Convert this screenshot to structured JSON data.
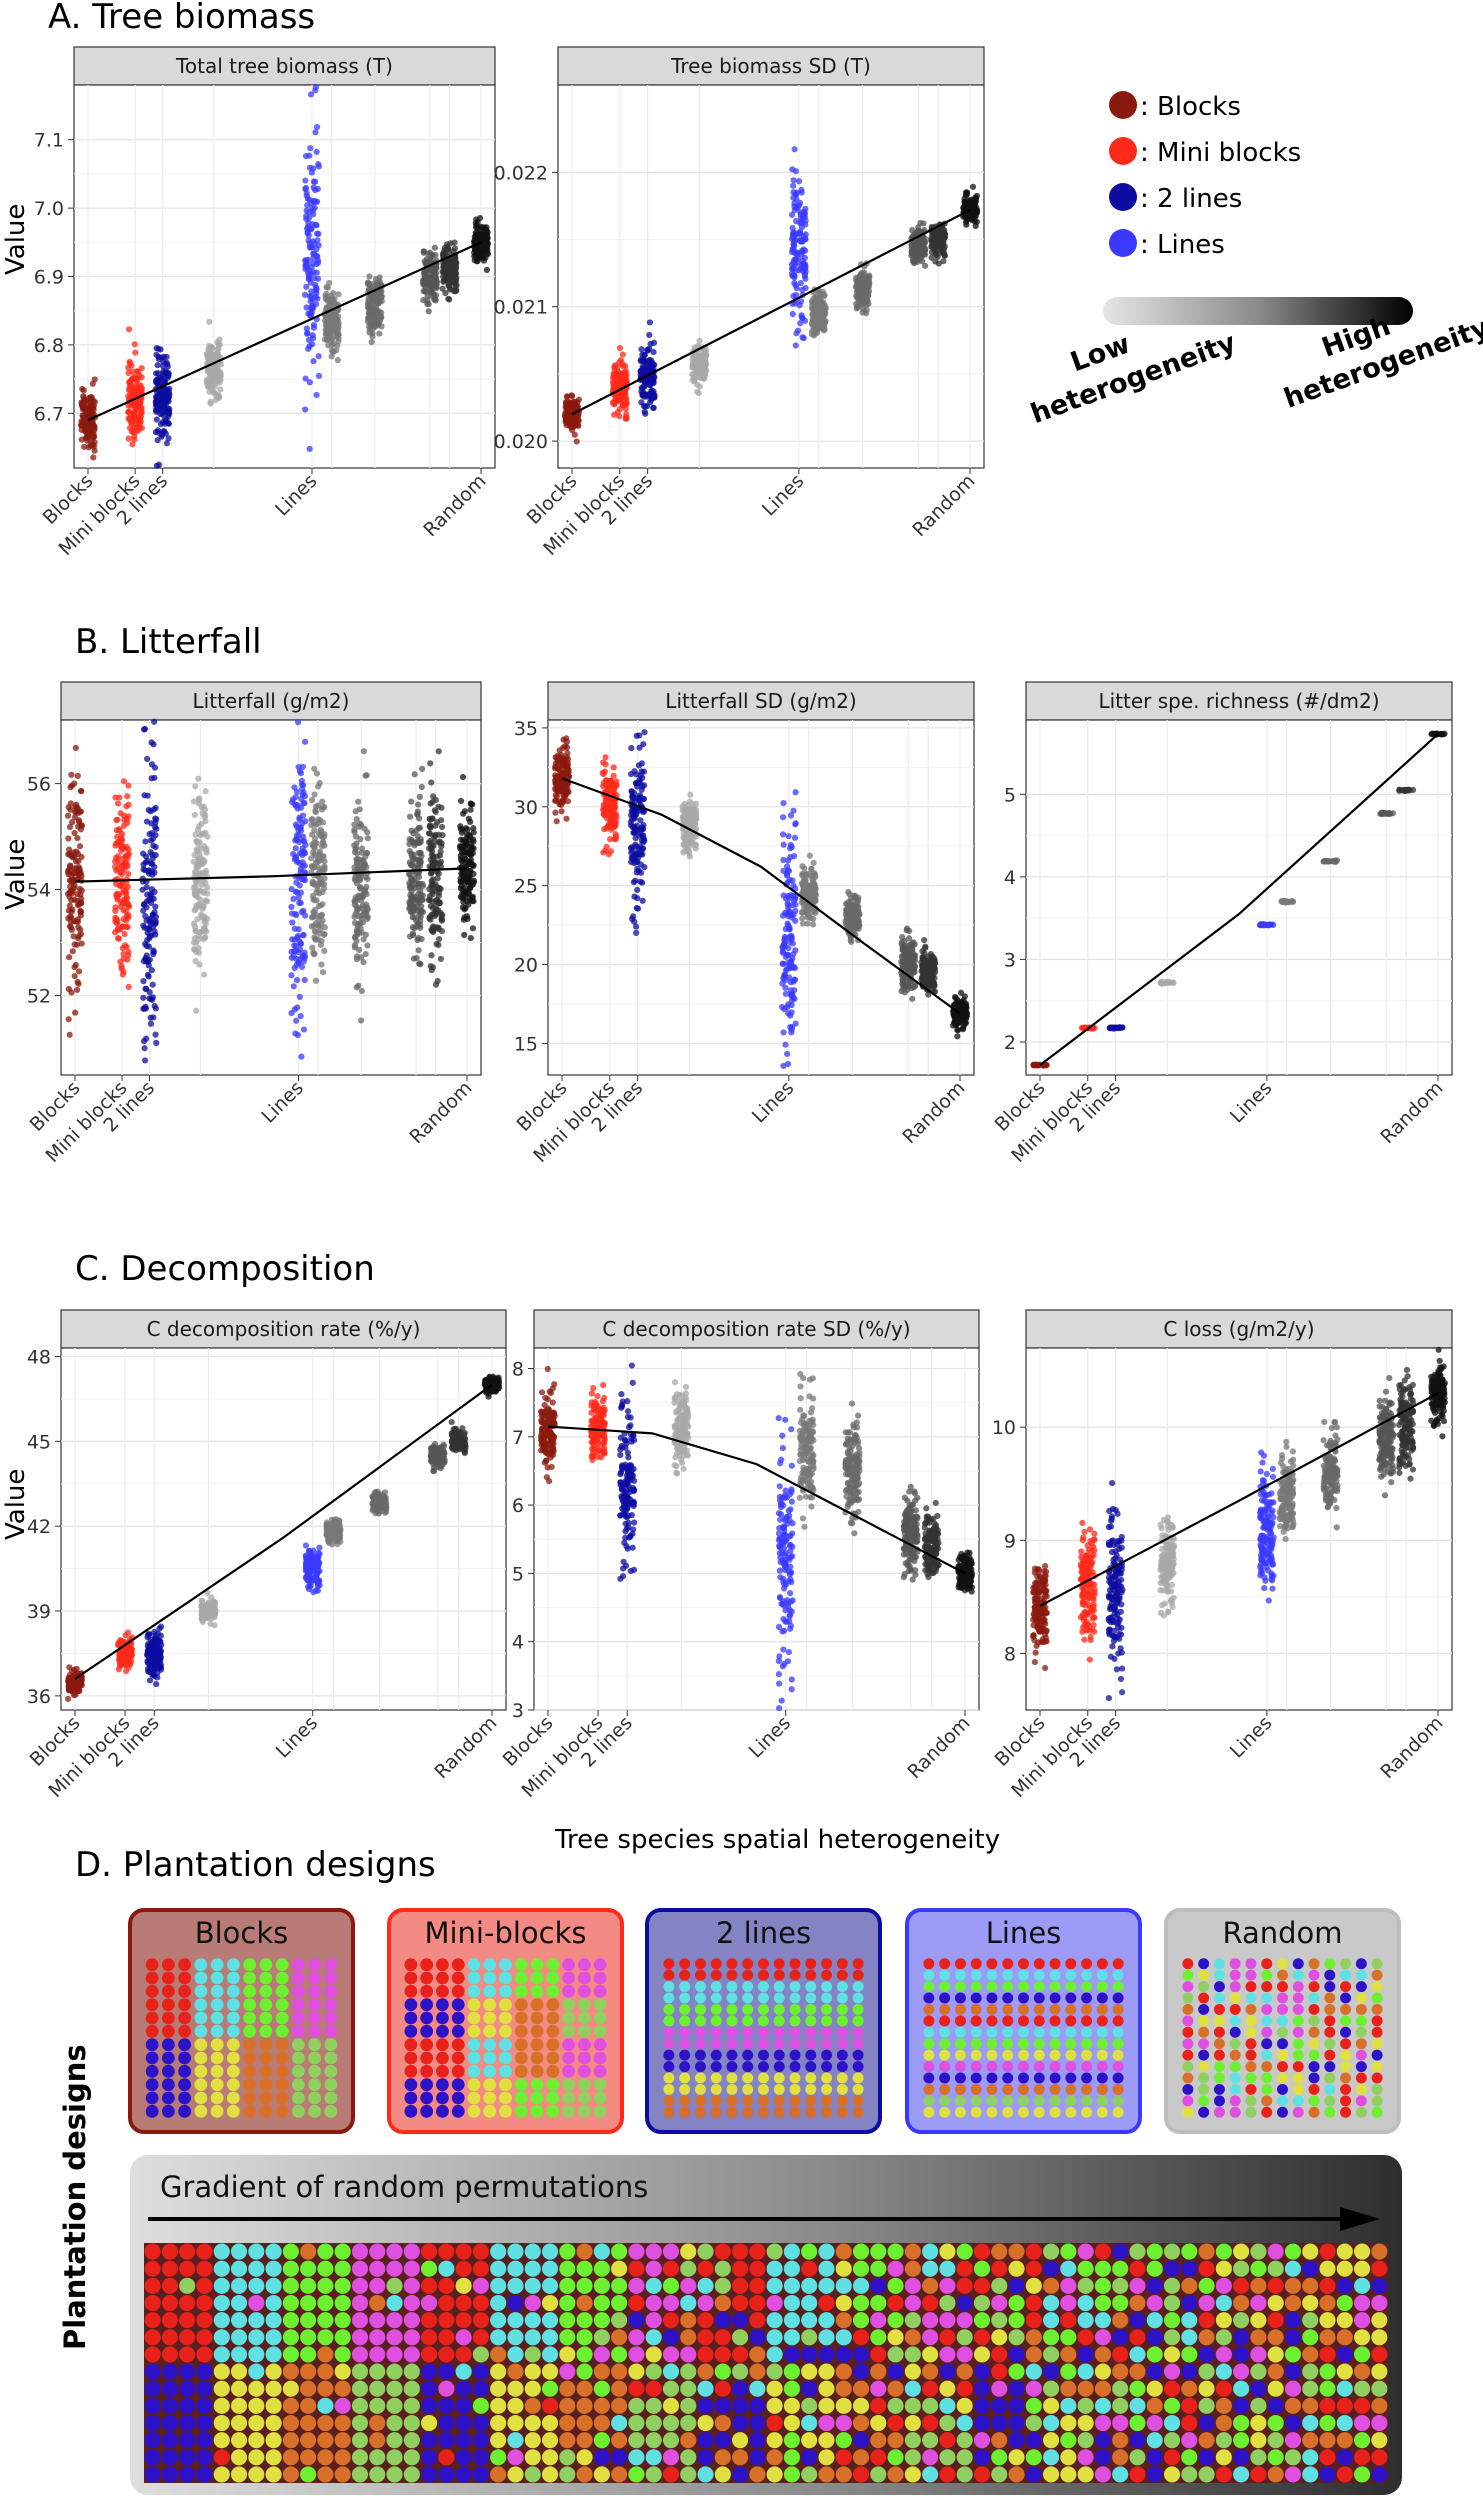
{
  "colors": {
    "Blocks": "#8b1a0e",
    "Mini blocks": "#ff2a1a",
    "2 lines": "#0c0ca0",
    "Lines": "#3a3aff",
    "palette": [
      "#e8211a",
      "#2d12c8",
      "#5fe0e3",
      "#e0e040",
      "#6df030",
      "#d8702a",
      "#e050e0",
      "#8fd060"
    ]
  },
  "x_categories": [
    "Blocks",
    "Mini blocks",
    "2 lines",
    "Lines",
    "Random"
  ],
  "legend": {
    "items": [
      ": Blocks",
      ": Mini blocks",
      ": 2 lines",
      ": Lines"
    ],
    "gradient_low": [
      "Low",
      "heterogeneity"
    ],
    "gradient_high": [
      "High",
      "heterogeneity"
    ]
  },
  "sections": {
    "A": "A. Tree biomass",
    "B": "B. Litterfall",
    "C": "C. Decomposition",
    "D": "D. Plantation designs"
  },
  "y_axis_label": "Value",
  "x_axis_label": "Tree species spatial heterogeneity",
  "chart_data": [
    {
      "type": "scatter",
      "title": "Total tree biomass (T)",
      "ylim": [
        6.62,
        7.18
      ],
      "yticks": [
        6.7,
        6.8,
        6.9,
        7.0,
        7.1
      ],
      "ytick_labels": [
        "6.7",
        "6.8",
        "6.9",
        "7.0",
        "7.1"
      ],
      "groups": [
        {
          "x": 0.0,
          "mean": 6.69,
          "spread": 0.05,
          "color": "Blocks"
        },
        {
          "x": 0.12,
          "mean": 6.72,
          "spread": 0.06,
          "color": "Mini blocks"
        },
        {
          "x": 0.19,
          "mean": 6.73,
          "spread": 0.07,
          "color": "2 lines"
        },
        {
          "x": 0.32,
          "mean": 6.76,
          "spread": 0.05,
          "color": "#a8a8a8"
        },
        {
          "x": 0.57,
          "mean": 6.93,
          "spread": 0.22,
          "color": "Lines"
        },
        {
          "x": 0.62,
          "mean": 6.83,
          "spread": 0.05,
          "color": "#787878"
        },
        {
          "x": 0.73,
          "mean": 6.86,
          "spread": 0.05,
          "color": "#6a6a6a"
        },
        {
          "x": 0.87,
          "mean": 6.9,
          "spread": 0.04,
          "color": "#555555"
        },
        {
          "x": 0.92,
          "mean": 6.91,
          "spread": 0.04,
          "color": "#333333"
        },
        {
          "x": 1.0,
          "mean": 6.95,
          "spread": 0.03,
          "color": "#111111"
        }
      ],
      "fit_line": [
        [
          0.0,
          6.69
        ],
        [
          1.0,
          6.95
        ]
      ]
    },
    {
      "type": "scatter",
      "title": "Tree biomass SD (T)",
      "ylim": [
        0.0198,
        0.02265
      ],
      "yticks": [
        0.02,
        0.021,
        0.022
      ],
      "ytick_labels": [
        "0.020",
        "0.021",
        "0.022"
      ],
      "groups": [
        {
          "x": 0.0,
          "mean": 0.0202,
          "spread": 0.00012,
          "color": "Blocks"
        },
        {
          "x": 0.12,
          "mean": 0.0204,
          "spread": 0.0002,
          "color": "Mini blocks"
        },
        {
          "x": 0.19,
          "mean": 0.0205,
          "spread": 0.00025,
          "color": "2 lines"
        },
        {
          "x": 0.32,
          "mean": 0.02057,
          "spread": 0.00015,
          "color": "#a8a8a8"
        },
        {
          "x": 0.57,
          "mean": 0.0214,
          "spread": 0.0006,
          "color": "Lines"
        },
        {
          "x": 0.62,
          "mean": 0.02095,
          "spread": 0.00018,
          "color": "#787878"
        },
        {
          "x": 0.73,
          "mean": 0.02113,
          "spread": 0.00015,
          "color": "#6a6a6a"
        },
        {
          "x": 0.87,
          "mean": 0.02145,
          "spread": 0.00015,
          "color": "#555555"
        },
        {
          "x": 0.92,
          "mean": 0.0215,
          "spread": 0.00015,
          "color": "#333333"
        },
        {
          "x": 1.0,
          "mean": 0.02172,
          "spread": 0.0001,
          "color": "#111111"
        }
      ],
      "fit_line": [
        [
          0.0,
          0.0202
        ],
        [
          1.0,
          0.02172
        ]
      ]
    },
    {
      "type": "scatter",
      "title": "Litterfall (g/m2)",
      "ylim": [
        50.5,
        57.2
      ],
      "yticks": [
        52,
        54,
        56
      ],
      "ytick_labels": [
        "52",
        "54",
        "56"
      ],
      "groups": [
        {
          "x": 0.0,
          "mean": 54.2,
          "spread": 2.2,
          "color": "Blocks"
        },
        {
          "x": 0.12,
          "mean": 54.2,
          "spread": 2.0,
          "color": "Mini blocks"
        },
        {
          "x": 0.19,
          "mean": 53.8,
          "spread": 3.0,
          "color": "2 lines"
        },
        {
          "x": 0.32,
          "mean": 54.2,
          "spread": 1.8,
          "color": "#a8a8a8"
        },
        {
          "x": 0.57,
          "mean": 54.1,
          "spread": 2.8,
          "color": "Lines"
        },
        {
          "x": 0.62,
          "mean": 54.3,
          "spread": 1.9,
          "color": "#787878"
        },
        {
          "x": 0.73,
          "mean": 54.1,
          "spread": 2.0,
          "color": "#6a6a6a"
        },
        {
          "x": 0.87,
          "mean": 54.2,
          "spread": 1.7,
          "color": "#555555"
        },
        {
          "x": 0.92,
          "mean": 54.3,
          "spread": 1.7,
          "color": "#333333"
        },
        {
          "x": 1.0,
          "mean": 54.4,
          "spread": 1.2,
          "color": "#111111"
        }
      ],
      "fit_line": [
        [
          0.0,
          54.15
        ],
        [
          0.5,
          54.25
        ],
        [
          1.0,
          54.4
        ]
      ]
    },
    {
      "type": "scatter",
      "title": "Litterfall SD (g/m2)",
      "ylim": [
        13.0,
        35.5
      ],
      "yticks": [
        15,
        20,
        25,
        30,
        35
      ],
      "ytick_labels": [
        "15",
        "20",
        "25",
        "30",
        "35"
      ],
      "groups": [
        {
          "x": 0.0,
          "mean": 31.8,
          "spread": 2.0,
          "color": "Blocks"
        },
        {
          "x": 0.12,
          "mean": 30.0,
          "spread": 2.5,
          "color": "Mini blocks"
        },
        {
          "x": 0.19,
          "mean": 28.5,
          "spread": 6.0,
          "color": "2 lines"
        },
        {
          "x": 0.32,
          "mean": 28.8,
          "spread": 1.8,
          "color": "#a8a8a8"
        },
        {
          "x": 0.57,
          "mean": 22.0,
          "spread": 8.0,
          "color": "Lines"
        },
        {
          "x": 0.62,
          "mean": 24.5,
          "spread": 2.0,
          "color": "#787878"
        },
        {
          "x": 0.73,
          "mean": 23.0,
          "spread": 1.5,
          "color": "#6a6a6a"
        },
        {
          "x": 0.87,
          "mean": 20.0,
          "spread": 2.0,
          "color": "#555555"
        },
        {
          "x": 0.92,
          "mean": 19.5,
          "spread": 1.5,
          "color": "#333333"
        },
        {
          "x": 1.0,
          "mean": 16.8,
          "spread": 1.0,
          "color": "#111111"
        }
      ],
      "fit_line": [
        [
          0.0,
          31.8
        ],
        [
          0.25,
          29.5
        ],
        [
          0.5,
          26.2
        ],
        [
          0.75,
          21.5
        ],
        [
          1.0,
          16.9
        ]
      ]
    },
    {
      "type": "scatter",
      "title": "Litter spe. richness (#/dm2)",
      "ylim": [
        1.6,
        5.9
      ],
      "yticks": [
        2,
        3,
        4,
        5
      ],
      "ytick_labels": [
        "2",
        "3",
        "4",
        "5"
      ],
      "groups": [
        {
          "x": 0.0,
          "mean": 1.72,
          "spread": 0.01,
          "color": "Blocks"
        },
        {
          "x": 0.12,
          "mean": 2.17,
          "spread": 0.01,
          "color": "Mini blocks"
        },
        {
          "x": 0.19,
          "mean": 2.17,
          "spread": 0.01,
          "color": "2 lines"
        },
        {
          "x": 0.32,
          "mean": 2.72,
          "spread": 0.01,
          "color": "#a8a8a8"
        },
        {
          "x": 0.57,
          "mean": 3.42,
          "spread": 0.01,
          "color": "Lines"
        },
        {
          "x": 0.62,
          "mean": 3.7,
          "spread": 0.01,
          "color": "#787878"
        },
        {
          "x": 0.73,
          "mean": 4.19,
          "spread": 0.01,
          "color": "#6a6a6a"
        },
        {
          "x": 0.87,
          "mean": 4.77,
          "spread": 0.01,
          "color": "#555555"
        },
        {
          "x": 0.92,
          "mean": 5.05,
          "spread": 0.01,
          "color": "#333333"
        },
        {
          "x": 1.0,
          "mean": 5.73,
          "spread": 0.01,
          "color": "#111111"
        }
      ],
      "fit_line": [
        [
          0.0,
          1.72
        ],
        [
          0.5,
          3.55
        ],
        [
          1.0,
          5.73
        ]
      ]
    },
    {
      "type": "scatter",
      "title": "C decomposition rate (%/y)",
      "ylim": [
        35.5,
        48.3
      ],
      "yticks": [
        36,
        39,
        42,
        45,
        48
      ],
      "ytick_labels": [
        "36",
        "39",
        "42",
        "45",
        "48"
      ],
      "groups": [
        {
          "x": 0.0,
          "mean": 36.5,
          "spread": 0.4,
          "color": "Blocks"
        },
        {
          "x": 0.12,
          "mean": 37.5,
          "spread": 0.6,
          "color": "Mini blocks"
        },
        {
          "x": 0.19,
          "mean": 37.5,
          "spread": 0.8,
          "color": "2 lines"
        },
        {
          "x": 0.32,
          "mean": 39.0,
          "spread": 0.4,
          "color": "#a8a8a8"
        },
        {
          "x": 0.57,
          "mean": 40.5,
          "spread": 0.8,
          "color": "Lines"
        },
        {
          "x": 0.62,
          "mean": 41.8,
          "spread": 0.4,
          "color": "#787878"
        },
        {
          "x": 0.73,
          "mean": 42.8,
          "spread": 0.4,
          "color": "#6a6a6a"
        },
        {
          "x": 0.87,
          "mean": 44.5,
          "spread": 0.4,
          "color": "#555555"
        },
        {
          "x": 0.92,
          "mean": 45.0,
          "spread": 0.4,
          "color": "#333333"
        },
        {
          "x": 1.0,
          "mean": 47.0,
          "spread": 0.3,
          "color": "#111111"
        }
      ],
      "fit_line": [
        [
          0.0,
          36.6
        ],
        [
          0.5,
          41.6
        ],
        [
          1.0,
          47.0
        ]
      ]
    },
    {
      "type": "scatter",
      "title": "C decomposition rate SD (%/y)",
      "ylim": [
        3.0,
        8.3
      ],
      "yticks": [
        3,
        4,
        5,
        6,
        7,
        8
      ],
      "ytick_labels": [
        "3",
        "4",
        "5",
        "6",
        "7",
        "8"
      ],
      "groups": [
        {
          "x": 0.0,
          "mean": 7.1,
          "spread": 0.6,
          "color": "Blocks"
        },
        {
          "x": 0.12,
          "mean": 7.1,
          "spread": 0.6,
          "color": "Mini blocks"
        },
        {
          "x": 0.19,
          "mean": 6.3,
          "spread": 1.3,
          "color": "2 lines"
        },
        {
          "x": 0.32,
          "mean": 7.1,
          "spread": 0.6,
          "color": "#a8a8a8"
        },
        {
          "x": 0.57,
          "mean": 5.2,
          "spread": 1.8,
          "color": "Lines"
        },
        {
          "x": 0.62,
          "mean": 6.8,
          "spread": 0.9,
          "color": "#787878"
        },
        {
          "x": 0.73,
          "mean": 6.5,
          "spread": 0.8,
          "color": "#6a6a6a"
        },
        {
          "x": 0.87,
          "mean": 5.6,
          "spread": 0.6,
          "color": "#555555"
        },
        {
          "x": 0.92,
          "mean": 5.4,
          "spread": 0.5,
          "color": "#333333"
        },
        {
          "x": 1.0,
          "mean": 5.0,
          "spread": 0.3,
          "color": "#111111"
        }
      ],
      "fit_line": [
        [
          0.0,
          7.15
        ],
        [
          0.25,
          7.05
        ],
        [
          0.5,
          6.6
        ],
        [
          0.75,
          5.8
        ],
        [
          1.0,
          5.0
        ]
      ]
    },
    {
      "type": "scatter",
      "title": "C loss (g/m2/y)",
      "ylim": [
        7.5,
        10.7
      ],
      "yticks": [
        8,
        9,
        10
      ],
      "ytick_labels": [
        "8",
        "9",
        "10"
      ],
      "groups": [
        {
          "x": 0.0,
          "mean": 8.4,
          "spread": 0.4,
          "color": "Blocks"
        },
        {
          "x": 0.12,
          "mean": 8.6,
          "spread": 0.5,
          "color": "Mini blocks"
        },
        {
          "x": 0.19,
          "mean": 8.5,
          "spread": 0.8,
          "color": "2 lines"
        },
        {
          "x": 0.32,
          "mean": 8.8,
          "spread": 0.4,
          "color": "#a8a8a8"
        },
        {
          "x": 0.57,
          "mean": 9.1,
          "spread": 0.6,
          "color": "Lines"
        },
        {
          "x": 0.62,
          "mean": 9.4,
          "spread": 0.4,
          "color": "#787878"
        },
        {
          "x": 0.73,
          "mean": 9.6,
          "spread": 0.4,
          "color": "#6a6a6a"
        },
        {
          "x": 0.87,
          "mean": 9.9,
          "spread": 0.4,
          "color": "#555555"
        },
        {
          "x": 0.92,
          "mean": 10.0,
          "spread": 0.4,
          "color": "#333333"
        },
        {
          "x": 1.0,
          "mean": 10.3,
          "spread": 0.3,
          "color": "#111111"
        }
      ],
      "fit_line": [
        [
          0.0,
          8.42
        ],
        [
          0.5,
          9.35
        ],
        [
          1.0,
          10.3
        ]
      ]
    }
  ],
  "designs": {
    "vertical_label": "Plantation designs",
    "panels": [
      {
        "label": "Blocks",
        "type": "blocks",
        "border": "#8b1a0e",
        "bg": "#b97b76"
      },
      {
        "label": "Mini-blocks",
        "type": "miniblocks",
        "border": "#ff2a1a",
        "bg": "#f38a84"
      },
      {
        "label": "2 lines",
        "type": "twolines",
        "border": "#0c0ca0",
        "bg": "#8484c4"
      },
      {
        "label": "Lines",
        "type": "lines",
        "border": "#3a3aff",
        "bg": "#9c9cf6"
      },
      {
        "label": "Random",
        "type": "random",
        "border": "#bdbdbd",
        "bg": "#c9c9c9"
      }
    ],
    "gradient_label": "Gradient of random permutations"
  }
}
